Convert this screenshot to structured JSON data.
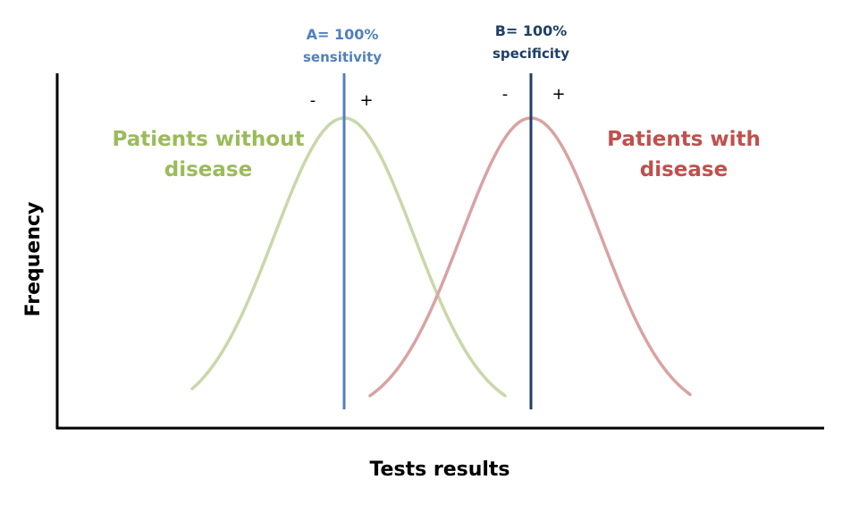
{
  "colors": {
    "healthy_curve": "#c8d8a9",
    "disease_curve": "#d9a3a3",
    "healthy_text": "#9bbb59",
    "disease_text": "#c0504d",
    "line_a": "#4f81bd",
    "line_b": "#1f3f66",
    "axis": "#000000"
  },
  "axes": {
    "x_label": "Tests results",
    "y_label": "Frequency"
  },
  "line_a": {
    "label_line1": "A= 100%",
    "label_line2": "sensitivity",
    "minus": "-",
    "plus": "+"
  },
  "line_b": {
    "label_line1": "B= 100%",
    "label_line2": "specificity",
    "minus": "-",
    "plus": "+"
  },
  "curves": {
    "healthy": {
      "label_line1": "Patients without",
      "label_line2": "disease"
    },
    "disease": {
      "label_line1": "Patients with",
      "label_line2": "disease"
    }
  }
}
